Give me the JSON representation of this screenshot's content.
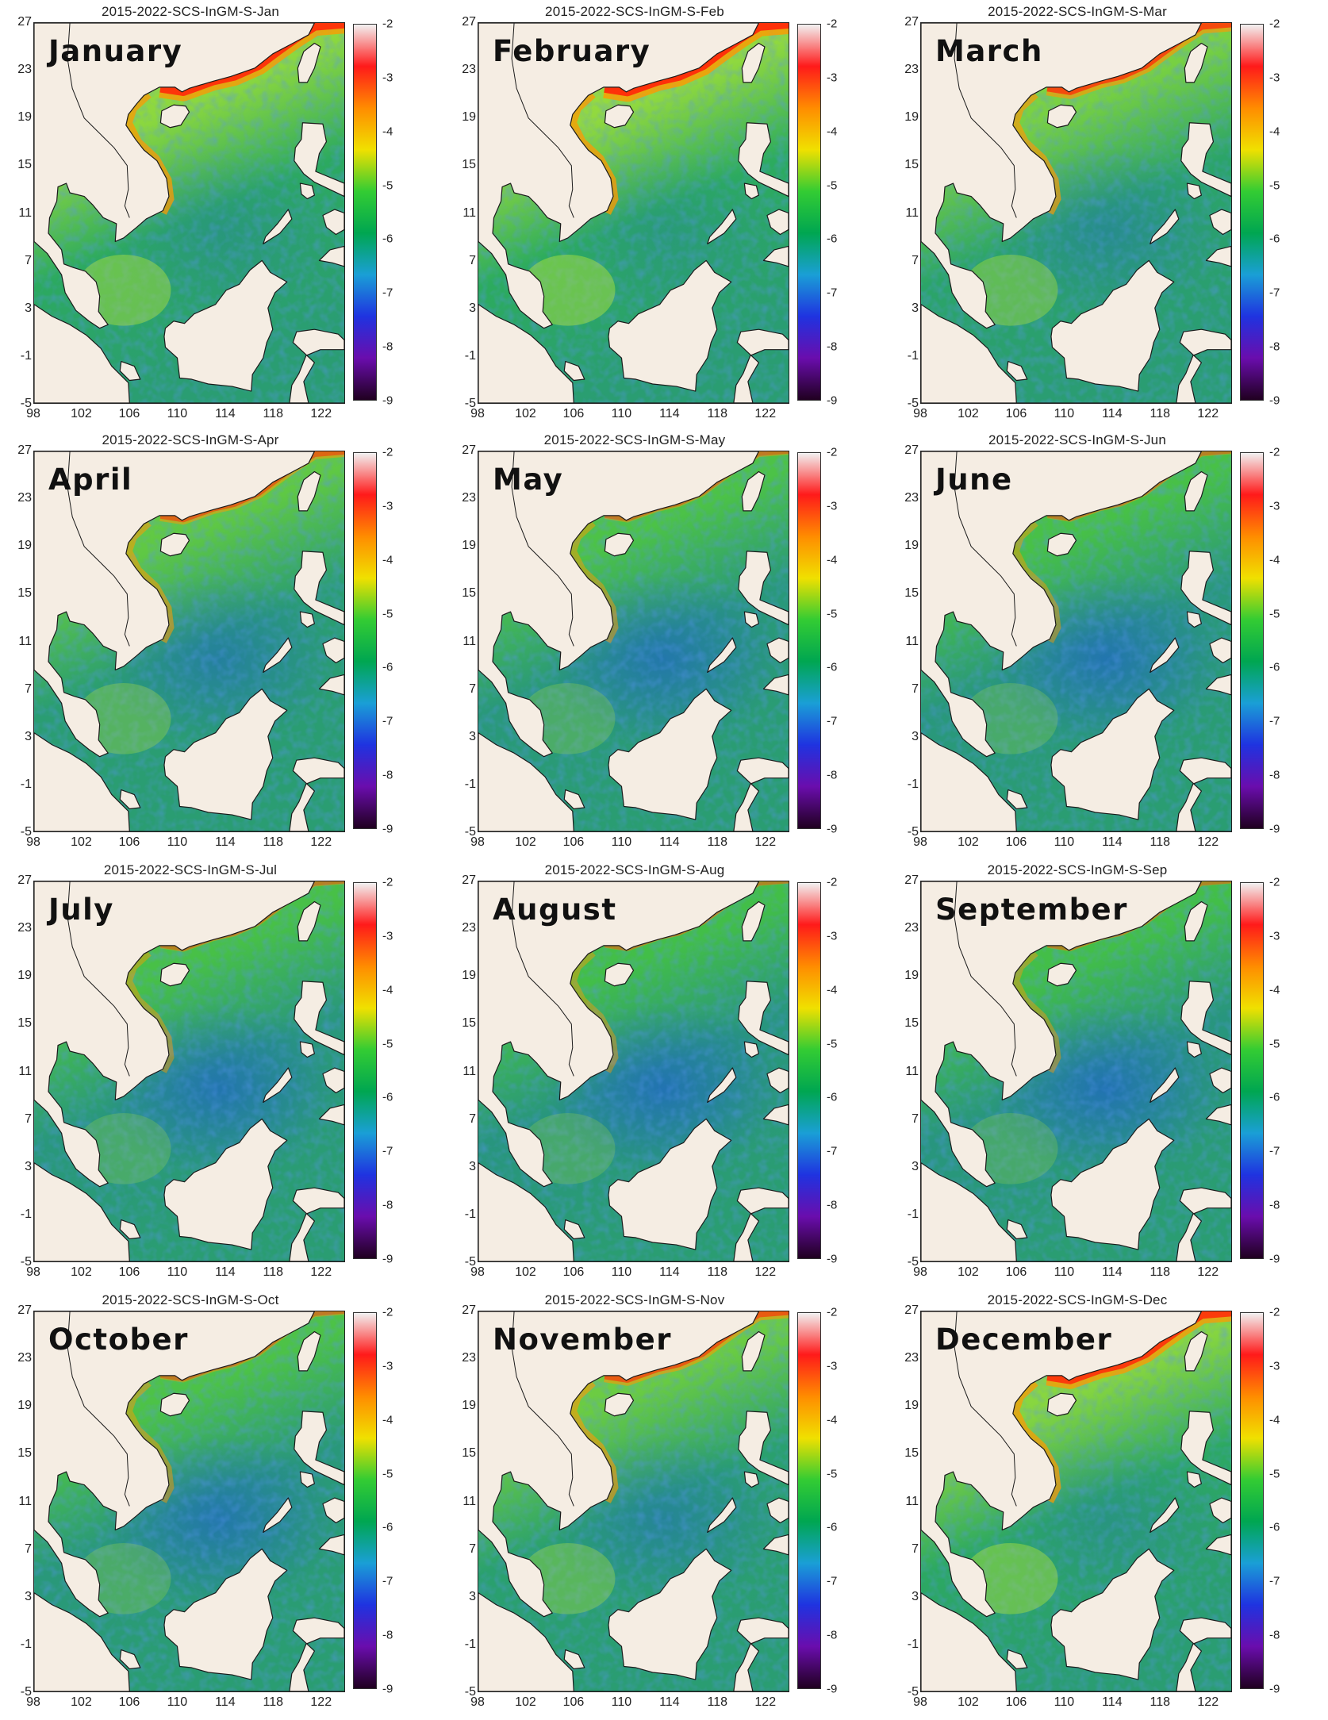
{
  "panels": [
    {
      "title": "2015-2022-SCS-InGM-S-Jan",
      "month": "January",
      "level": 0.95
    },
    {
      "title": "2015-2022-SCS-InGM-S-Feb",
      "month": "February",
      "level": 1.0
    },
    {
      "title": "2015-2022-SCS-InGM-S-Mar",
      "month": "March",
      "level": 0.75
    },
    {
      "title": "2015-2022-SCS-InGM-S-Apr",
      "month": "April",
      "level": 0.5
    },
    {
      "title": "2015-2022-SCS-InGM-S-May",
      "month": "May",
      "level": 0.3
    },
    {
      "title": "2015-2022-SCS-InGM-S-Jun",
      "month": "June",
      "level": 0.25
    },
    {
      "title": "2015-2022-SCS-InGM-S-Jul",
      "month": "July",
      "level": 0.25
    },
    {
      "title": "2015-2022-SCS-InGM-S-Aug",
      "month": "August",
      "level": 0.2
    },
    {
      "title": "2015-2022-SCS-InGM-S-Sep",
      "month": "September",
      "level": 0.2
    },
    {
      "title": "2015-2022-SCS-InGM-S-Oct",
      "month": "October",
      "level": 0.3
    },
    {
      "title": "2015-2022-SCS-InGM-S-Nov",
      "month": "November",
      "level": 0.6
    },
    {
      "title": "2015-2022-SCS-InGM-S-Dec",
      "month": "December",
      "level": 0.9
    }
  ],
  "axes": {
    "lon_ticks": [
      "98",
      "102",
      "106",
      "110",
      "114",
      "118",
      "122"
    ],
    "lat_ticks": [
      "27",
      "23",
      "19",
      "15",
      "11",
      "7",
      "3",
      "-1",
      "-5"
    ],
    "lon_range": [
      98,
      124
    ],
    "lat_range": [
      -5,
      27
    ]
  },
  "colorbar": {
    "ticks": [
      "-2",
      "-3",
      "-4",
      "-5",
      "-6",
      "-7",
      "-8",
      "-9"
    ],
    "range": [
      -9,
      -2
    ],
    "colors": [
      "#f2f2f2",
      "#ff1a1a",
      "#ff8c00",
      "#f0e000",
      "#33cc33",
      "#00a651",
      "#1a9fd6",
      "#1f33e0",
      "#6a0dad",
      "#200020"
    ]
  },
  "colors": {
    "land": "#f5ede3",
    "ocean_deep": "#1e5fd0",
    "ocean_mid": "#2fb84a",
    "ocean_shelf": "#b8e63a",
    "coast_high": "#ff2a0a",
    "coast_mid": "#ff9a00"
  }
}
